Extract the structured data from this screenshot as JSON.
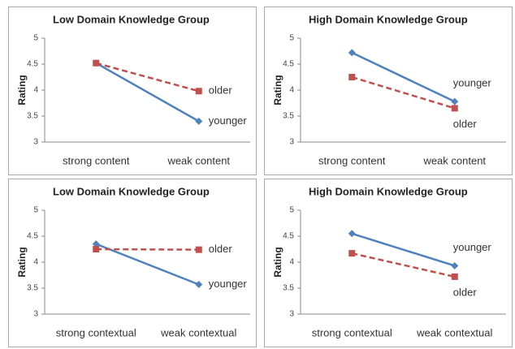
{
  "chart_data": [
    {
      "type": "line",
      "title": "Low Domain Knowledge Group",
      "ylabel": "Rating",
      "categories": [
        "strong content",
        "weak content"
      ],
      "series": [
        {
          "name": "younger",
          "color": "#4f81bd",
          "values": [
            4.52,
            3.4
          ]
        },
        {
          "name": "older",
          "color": "#c0504d",
          "values": [
            4.52,
            3.98
          ]
        }
      ],
      "ylim": [
        3,
        5
      ],
      "yticks": [
        3,
        3.5,
        4,
        4.5,
        5
      ]
    },
    {
      "type": "line",
      "title": "High Domain Knowledge Group",
      "ylabel": "Rating",
      "categories": [
        "strong content",
        "weak content"
      ],
      "series": [
        {
          "name": "younger",
          "color": "#4f81bd",
          "values": [
            4.72,
            3.78
          ]
        },
        {
          "name": "older",
          "color": "#c0504d",
          "values": [
            4.25,
            3.65
          ]
        }
      ],
      "ylim": [
        3,
        5
      ],
      "yticks": [
        3,
        3.5,
        4,
        4.5,
        5
      ]
    },
    {
      "type": "line",
      "title": "Low Domain Knowledge Group",
      "ylabel": "Rating",
      "categories": [
        "strong contextual",
        "weak contextual"
      ],
      "series": [
        {
          "name": "younger",
          "color": "#4f81bd",
          "values": [
            4.35,
            3.57
          ]
        },
        {
          "name": "older",
          "color": "#c0504d",
          "values": [
            4.25,
            4.24
          ]
        }
      ],
      "ylim": [
        3,
        5
      ],
      "yticks": [
        3,
        3.5,
        4,
        4.5,
        5
      ]
    },
    {
      "type": "line",
      "title": "High Domain Knowledge Group",
      "ylabel": "Rating",
      "categories": [
        "strong contextual",
        "weak contextual"
      ],
      "series": [
        {
          "name": "younger",
          "color": "#4f81bd",
          "values": [
            4.55,
            3.93
          ]
        },
        {
          "name": "older",
          "color": "#c0504d",
          "values": [
            4.17,
            3.72
          ]
        }
      ],
      "ylim": [
        3,
        5
      ],
      "yticks": [
        3,
        3.5,
        4,
        4.5,
        5
      ]
    }
  ]
}
